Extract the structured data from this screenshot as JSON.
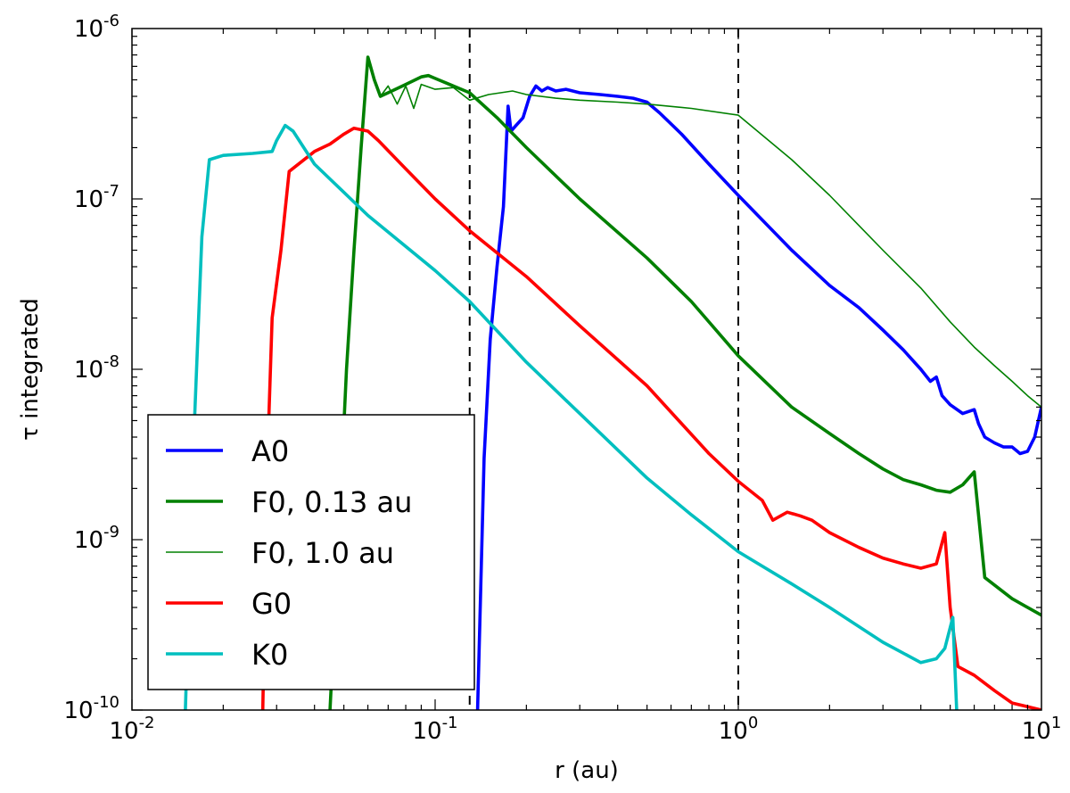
{
  "chart_data": {
    "type": "line",
    "x_scale": "log",
    "y_scale": "log",
    "xlabel": "r (au)",
    "ylabel": "τ integrated",
    "xlim": [
      0.01,
      10
    ],
    "ylim": [
      1e-10,
      1e-06
    ],
    "x_ticks": [
      {
        "value": 0.01,
        "base": "10",
        "exp": "-2"
      },
      {
        "value": 0.1,
        "base": "10",
        "exp": "-1"
      },
      {
        "value": 1,
        "base": "10",
        "exp": "0"
      },
      {
        "value": 10,
        "base": "10",
        "exp": "1"
      }
    ],
    "y_ticks": [
      {
        "value": 1e-10,
        "base": "10",
        "exp": "-10"
      },
      {
        "value": 1e-09,
        "base": "10",
        "exp": "-9"
      },
      {
        "value": 1e-08,
        "base": "10",
        "exp": "-8"
      },
      {
        "value": 1e-07,
        "base": "10",
        "exp": "-7"
      },
      {
        "value": 1e-06,
        "base": "10",
        "exp": "-6"
      }
    ],
    "vertical_lines": [
      {
        "x": 0.13,
        "style": "dashed",
        "color": "#000000"
      },
      {
        "x": 1.0,
        "style": "dashed",
        "color": "#000000"
      }
    ],
    "legend_position": "lower-left",
    "series": [
      {
        "name": "A0",
        "color": "#0000ff",
        "width": "thick",
        "points": [
          [
            0.138,
            1e-10
          ],
          [
            0.145,
            3e-09
          ],
          [
            0.152,
            1.5e-08
          ],
          [
            0.16,
            4e-08
          ],
          [
            0.168,
            9e-08
          ],
          [
            0.174,
            3.5e-07
          ],
          [
            0.178,
            2.5e-07
          ],
          [
            0.185,
            2.7e-07
          ],
          [
            0.195,
            3e-07
          ],
          [
            0.205,
            4e-07
          ],
          [
            0.215,
            4.6e-07
          ],
          [
            0.225,
            4.3e-07
          ],
          [
            0.235,
            4.5e-07
          ],
          [
            0.25,
            4.3e-07
          ],
          [
            0.27,
            4.4e-07
          ],
          [
            0.3,
            4.2e-07
          ],
          [
            0.35,
            4.1e-07
          ],
          [
            0.4,
            4e-07
          ],
          [
            0.45,
            3.9e-07
          ],
          [
            0.5,
            3.7e-07
          ],
          [
            0.55,
            3.2e-07
          ],
          [
            0.65,
            2.4e-07
          ],
          [
            0.8,
            1.6e-07
          ],
          [
            1.0,
            1.05e-07
          ],
          [
            1.5,
            5e-08
          ],
          [
            2.0,
            3.1e-08
          ],
          [
            2.5,
            2.3e-08
          ],
          [
            3.0,
            1.7e-08
          ],
          [
            3.5,
            1.3e-08
          ],
          [
            4.0,
            1e-08
          ],
          [
            4.3,
            8.5e-09
          ],
          [
            4.5,
            9e-09
          ],
          [
            4.7,
            7e-09
          ],
          [
            5.0,
            6.2e-09
          ],
          [
            5.5,
            5.5e-09
          ],
          [
            6.0,
            5.8e-09
          ],
          [
            6.2,
            4.8e-09
          ],
          [
            6.5,
            4e-09
          ],
          [
            7.0,
            3.7e-09
          ],
          [
            7.5,
            3.5e-09
          ],
          [
            8.0,
            3.5e-09
          ],
          [
            8.5,
            3.2e-09
          ],
          [
            9.0,
            3.3e-09
          ],
          [
            9.5,
            4e-09
          ],
          [
            10.0,
            6e-09
          ]
        ]
      },
      {
        "name": "F0, 0.13 au",
        "color": "#008000",
        "width": "thick",
        "points": [
          [
            0.045,
            1e-10
          ],
          [
            0.048,
            1e-09
          ],
          [
            0.051,
            1e-08
          ],
          [
            0.054,
            5e-08
          ],
          [
            0.057,
            2e-07
          ],
          [
            0.06,
            6.8e-07
          ],
          [
            0.063,
            5e-07
          ],
          [
            0.066,
            4e-07
          ],
          [
            0.072,
            4.3e-07
          ],
          [
            0.08,
            4.7e-07
          ],
          [
            0.09,
            5.2e-07
          ],
          [
            0.095,
            5.3e-07
          ],
          [
            0.1,
            5.1e-07
          ],
          [
            0.13,
            4.2e-07
          ],
          [
            0.16,
            3e-07
          ],
          [
            0.2,
            2e-07
          ],
          [
            0.3,
            1e-07
          ],
          [
            0.5,
            4.5e-08
          ],
          [
            0.7,
            2.5e-08
          ],
          [
            1.0,
            1.2e-08
          ],
          [
            1.5,
            6e-09
          ],
          [
            2.0,
            4.2e-09
          ],
          [
            2.5,
            3.2e-09
          ],
          [
            3.0,
            2.6e-09
          ],
          [
            3.5,
            2.25e-09
          ],
          [
            4.0,
            2.1e-09
          ],
          [
            4.5,
            1.95e-09
          ],
          [
            5.0,
            1.9e-09
          ],
          [
            5.5,
            2.1e-09
          ],
          [
            6.0,
            2.5e-09
          ],
          [
            6.5,
            6e-10
          ],
          [
            8.0,
            4.5e-10
          ],
          [
            10.0,
            3.6e-10
          ]
        ]
      },
      {
        "name": "F0, 1.0 au",
        "color": "#008000",
        "width": "thin",
        "points": [
          [
            0.045,
            1e-10
          ],
          [
            0.048,
            1e-09
          ],
          [
            0.051,
            1e-08
          ],
          [
            0.054,
            5e-08
          ],
          [
            0.057,
            2e-07
          ],
          [
            0.06,
            6.8e-07
          ],
          [
            0.063,
            5e-07
          ],
          [
            0.066,
            4e-07
          ],
          [
            0.07,
            4.6e-07
          ],
          [
            0.075,
            3.6e-07
          ],
          [
            0.08,
            4.6e-07
          ],
          [
            0.085,
            3.4e-07
          ],
          [
            0.09,
            4.7e-07
          ],
          [
            0.1,
            4.4e-07
          ],
          [
            0.115,
            4.5e-07
          ],
          [
            0.13,
            3.8e-07
          ],
          [
            0.15,
            4.1e-07
          ],
          [
            0.18,
            4.3e-07
          ],
          [
            0.2,
            4.1e-07
          ],
          [
            0.25,
            3.9e-07
          ],
          [
            0.3,
            3.8e-07
          ],
          [
            0.4,
            3.7e-07
          ],
          [
            0.5,
            3.6e-07
          ],
          [
            0.7,
            3.4e-07
          ],
          [
            1.0,
            3.1e-07
          ],
          [
            1.5,
            1.7e-07
          ],
          [
            2.0,
            1.05e-07
          ],
          [
            3.0,
            5e-08
          ],
          [
            4.0,
            3e-08
          ],
          [
            5.0,
            1.9e-08
          ],
          [
            6.0,
            1.35e-08
          ],
          [
            7.0,
            1.05e-08
          ],
          [
            8.0,
            8.5e-09
          ],
          [
            9.0,
            7e-09
          ],
          [
            10.0,
            6e-09
          ]
        ]
      },
      {
        "name": "G0",
        "color": "#ff0000",
        "width": "thick",
        "points": [
          [
            0.027,
            1e-10
          ],
          [
            0.028,
            3e-09
          ],
          [
            0.029,
            2e-08
          ],
          [
            0.031,
            5e-08
          ],
          [
            0.033,
            1.45e-07
          ],
          [
            0.04,
            1.9e-07
          ],
          [
            0.045,
            2.1e-07
          ],
          [
            0.05,
            2.4e-07
          ],
          [
            0.054,
            2.6e-07
          ],
          [
            0.06,
            2.5e-07
          ],
          [
            0.065,
            2.2e-07
          ],
          [
            0.08,
            1.5e-07
          ],
          [
            0.1,
            1e-07
          ],
          [
            0.13,
            6.5e-08
          ],
          [
            0.2,
            3.5e-08
          ],
          [
            0.3,
            1.8e-08
          ],
          [
            0.5,
            8e-09
          ],
          [
            0.8,
            3.2e-09
          ],
          [
            1.0,
            2.2e-09
          ],
          [
            1.2,
            1.7e-09
          ],
          [
            1.3,
            1.3e-09
          ],
          [
            1.45,
            1.45e-09
          ],
          [
            1.6,
            1.38e-09
          ],
          [
            1.75,
            1.3e-09
          ],
          [
            2.0,
            1.1e-09
          ],
          [
            2.5,
            9e-10
          ],
          [
            3.0,
            7.8e-10
          ],
          [
            3.5,
            7.2e-10
          ],
          [
            4.0,
            6.8e-10
          ],
          [
            4.5,
            7.2e-10
          ],
          [
            4.8,
            1.1e-09
          ],
          [
            5.0,
            4e-10
          ],
          [
            5.3,
            1.8e-10
          ],
          [
            6.0,
            1.6e-10
          ],
          [
            7.0,
            1.3e-10
          ],
          [
            8.0,
            1.1e-10
          ],
          [
            10.0,
            1e-10
          ]
        ]
      },
      {
        "name": "K0",
        "color": "#00bfbf",
        "width": "thick",
        "points": [
          [
            0.015,
            1e-10
          ],
          [
            0.016,
            4e-09
          ],
          [
            0.017,
            6e-08
          ],
          [
            0.018,
            1.7e-07
          ],
          [
            0.02,
            1.8e-07
          ],
          [
            0.025,
            1.85e-07
          ],
          [
            0.029,
            1.9e-07
          ],
          [
            0.03,
            2.2e-07
          ],
          [
            0.032,
            2.7e-07
          ],
          [
            0.034,
            2.5e-07
          ],
          [
            0.04,
            1.6e-07
          ],
          [
            0.06,
            8e-08
          ],
          [
            0.1,
            3.8e-08
          ],
          [
            0.13,
            2.5e-08
          ],
          [
            0.2,
            1.1e-08
          ],
          [
            0.3,
            5.5e-09
          ],
          [
            0.5,
            2.3e-09
          ],
          [
            0.7,
            1.4e-09
          ],
          [
            1.0,
            8.5e-10
          ],
          [
            1.5,
            5.5e-10
          ],
          [
            2.0,
            4e-10
          ],
          [
            3.0,
            2.5e-10
          ],
          [
            4.0,
            1.9e-10
          ],
          [
            4.5,
            2e-10
          ],
          [
            4.8,
            2.3e-10
          ],
          [
            5.1,
            3.5e-10
          ],
          [
            5.25,
            1e-10
          ]
        ]
      }
    ]
  }
}
